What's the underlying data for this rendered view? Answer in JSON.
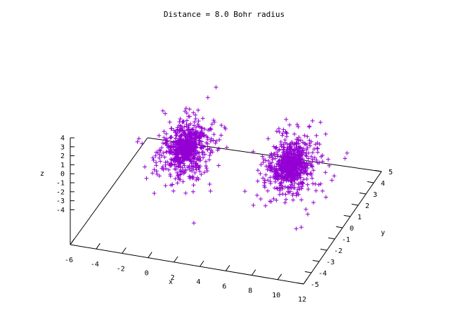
{
  "chart_data": {
    "type": "scatter",
    "title": "Distance = 8.0 Bohr radius",
    "xlabel": "x",
    "ylabel": "y",
    "zlabel": "z",
    "marker": "+",
    "marker_color": "#9400d3",
    "x_ticks": [
      "-6",
      "-4",
      "-2",
      "0",
      "2",
      "4",
      "6",
      "8",
      "10",
      "12"
    ],
    "y_ticks": [
      "-5",
      "-4",
      "-3",
      "-2",
      "-1",
      "0",
      "1",
      "2",
      "3",
      "4",
      "5"
    ],
    "z_ticks": [
      "4",
      "3",
      "2",
      "1",
      "0",
      "-1",
      "-2",
      "-3",
      "-4"
    ],
    "xlim": [
      -6,
      12
    ],
    "ylim": [
      -5,
      5
    ],
    "zlim": [
      -4,
      4
    ],
    "clusters": [
      {
        "center": [
          0,
          0,
          0
        ],
        "spread": 1.2,
        "count": 900
      },
      {
        "center": [
          8,
          0,
          0
        ],
        "spread": 1.2,
        "count": 900
      }
    ]
  }
}
